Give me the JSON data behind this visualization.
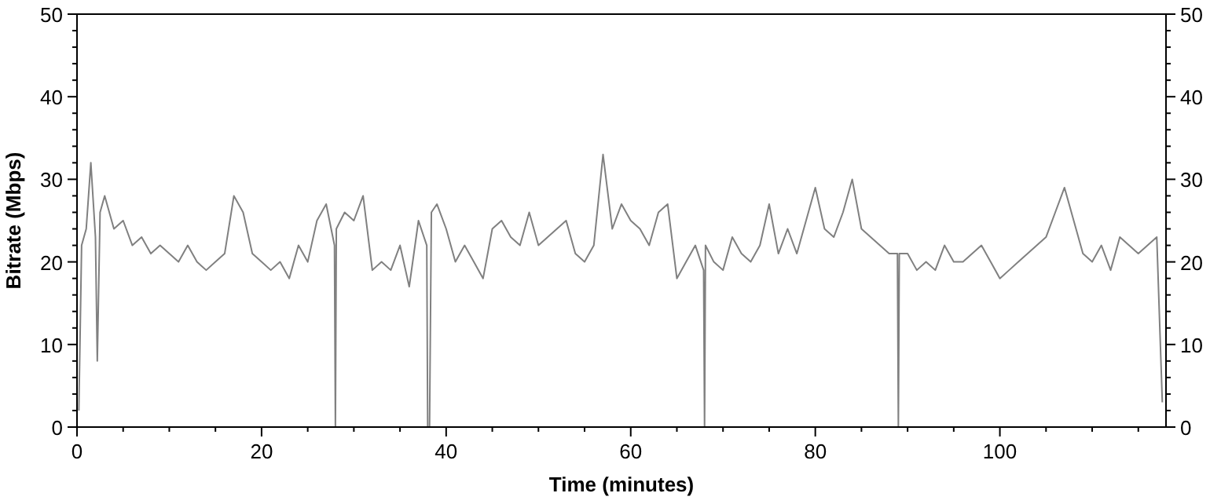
{
  "chart_data": {
    "type": "line",
    "xlabel": "Time (minutes)",
    "ylabel": "Bitrate (Mbps)",
    "xlim": [
      0,
      118
    ],
    "xticks": [
      0,
      {
        "value": 5,
        "label": null
      },
      {
        "value": 10,
        "label": null
      },
      {
        "value": 15,
        "label": null
      },
      20,
      {
        "value": 25,
        "label": null
      },
      {
        "value": 30,
        "label": null
      },
      {
        "value": 35,
        "label": null
      },
      40,
      {
        "value": 45,
        "label": null
      },
      {
        "value": 50,
        "label": null
      },
      {
        "value": 55,
        "label": null
      },
      60,
      {
        "value": 65,
        "label": null
      },
      {
        "value": 70,
        "label": null
      },
      {
        "value": 75,
        "label": null
      },
      80,
      {
        "value": 85,
        "label": null
      },
      {
        "value": 90,
        "label": null
      },
      {
        "value": 95,
        "label": null
      },
      100,
      {
        "value": 105,
        "label": null
      },
      {
        "value": 110,
        "label": null
      },
      {
        "value": 115,
        "label": null
      }
    ],
    "ylim": [
      0,
      50
    ],
    "yticks": [
      0,
      {
        "value": 2,
        "label": null
      },
      {
        "value": 4,
        "label": null
      },
      {
        "value": 6,
        "label": null
      },
      {
        "value": 8,
        "label": null
      },
      10,
      {
        "value": 12,
        "label": null
      },
      {
        "value": 14,
        "label": null
      },
      {
        "value": 16,
        "label": null
      },
      {
        "value": 18,
        "label": null
      },
      20,
      {
        "value": 22,
        "label": null
      },
      {
        "value": 24,
        "label": null
      },
      {
        "value": 26,
        "label": null
      },
      {
        "value": 28,
        "label": null
      },
      30,
      {
        "value": 32,
        "label": null
      },
      {
        "value": 34,
        "label": null
      },
      {
        "value": 36,
        "label": null
      },
      {
        "value": 38,
        "label": null
      },
      40,
      {
        "value": 42,
        "label": null
      },
      {
        "value": 44,
        "label": null
      },
      {
        "value": 46,
        "label": null
      },
      {
        "value": 48,
        "label": null
      },
      50
    ],
    "y2lim": [
      0,
      50
    ],
    "y2ticks": [
      0,
      {
        "value": 2,
        "label": null
      },
      {
        "value": 4,
        "label": null
      },
      {
        "value": 6,
        "label": null
      },
      {
        "value": 8,
        "label": null
      },
      10,
      {
        "value": 12,
        "label": null
      },
      {
        "value": 14,
        "label": null
      },
      {
        "value": 16,
        "label": null
      },
      {
        "value": 18,
        "label": null
      },
      20,
      {
        "value": 22,
        "label": null
      },
      {
        "value": 24,
        "label": null
      },
      {
        "value": 26,
        "label": null
      },
      {
        "value": 28,
        "label": null
      },
      30,
      {
        "value": 32,
        "label": null
      },
      {
        "value": 34,
        "label": null
      },
      {
        "value": 36,
        "label": null
      },
      {
        "value": 38,
        "label": null
      },
      40,
      {
        "value": 42,
        "label": null
      },
      {
        "value": 44,
        "label": null
      },
      {
        "value": 46,
        "label": null
      },
      {
        "value": 48,
        "label": null
      },
      50
    ],
    "grid": false,
    "marker": "none",
    "line_style": "solid",
    "series": [
      {
        "color": "#808080",
        "x": [
          0.2,
          0.5,
          1,
          1.5,
          2,
          2.2,
          2.5,
          3,
          4,
          5,
          6,
          7,
          8,
          9,
          10,
          11,
          12,
          13,
          14,
          15,
          16,
          17,
          18,
          19,
          20,
          21,
          22,
          23,
          24,
          25,
          26,
          27,
          27.9,
          28,
          28.1,
          29,
          30,
          31,
          32,
          33,
          34,
          35,
          36,
          37,
          37.9,
          38,
          38.2,
          38.4,
          39,
          40,
          41,
          42,
          43,
          44,
          45,
          46,
          47,
          48,
          49,
          50,
          51,
          52,
          53,
          54,
          55,
          56,
          57,
          58,
          59,
          60,
          61,
          62,
          63,
          64,
          65,
          66,
          67,
          67.9,
          68,
          68.1,
          69,
          70,
          71,
          72,
          73,
          74,
          75,
          76,
          77,
          78,
          79,
          80,
          81,
          82,
          83,
          84,
          85,
          86,
          87,
          88,
          88.9,
          89,
          89.1,
          90,
          91,
          92,
          93,
          94,
          95,
          96,
          97,
          98,
          99,
          100,
          101,
          102,
          103,
          104,
          105,
          106,
          107,
          108,
          109,
          110,
          111,
          112,
          113,
          114,
          115,
          116,
          117,
          117.6
        ],
        "values": [
          2,
          22,
          24,
          32,
          23,
          8,
          26,
          28,
          24,
          25,
          22,
          23,
          21,
          22,
          21,
          20,
          22,
          20,
          19,
          20,
          21,
          28,
          26,
          21,
          20,
          19,
          20,
          18,
          22,
          20,
          25,
          27,
          22,
          0,
          24,
          26,
          25,
          28,
          19,
          20,
          19,
          22,
          17,
          25,
          22,
          0,
          0,
          26,
          27,
          24,
          20,
          22,
          20,
          18,
          24,
          25,
          23,
          22,
          26,
          22,
          23,
          24,
          25,
          21,
          20,
          22,
          33,
          24,
          27,
          25,
          24,
          22,
          26,
          27,
          18,
          20,
          22,
          19,
          0,
          22,
          20,
          19,
          23,
          21,
          20,
          22,
          27,
          21,
          24,
          21,
          25,
          29,
          24,
          23,
          26,
          30,
          24,
          23,
          22,
          21,
          21,
          0,
          21,
          21,
          19,
          20,
          19,
          22,
          20,
          20,
          21,
          22,
          20,
          18,
          19,
          20,
          21,
          22,
          23,
          26,
          29,
          25,
          21,
          20,
          22,
          19,
          23,
          22,
          21,
          22,
          23,
          3
        ]
      }
    ]
  }
}
